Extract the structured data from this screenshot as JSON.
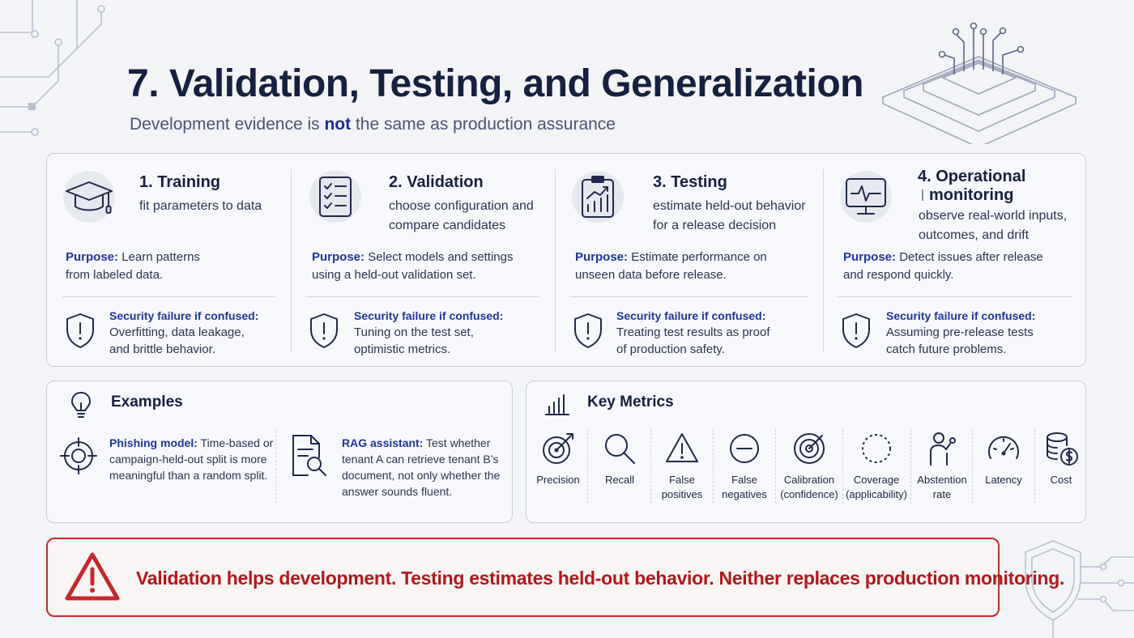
{
  "header": {
    "title": "7. Validation, Testing, and Generalization",
    "subtitle_before": "Development evidence is ",
    "subtitle_emphasis": "not",
    "subtitle_after": " the same as production assurance"
  },
  "stages": [
    {
      "title": "1. Training",
      "title_line2": "",
      "desc": [
        "fit parameters to data"
      ],
      "purpose_label": "Purpose:",
      "purpose": [
        "Learn patterns",
        "from labeled data."
      ],
      "failure_label": "Security failure if confused:",
      "failure": [
        "Overfitting, data leakage,",
        "and brittle behavior."
      ],
      "icon": "graduation-cap-icon"
    },
    {
      "title": "2. Validation",
      "title_line2": "",
      "desc": [
        "choose configuration and",
        "compare candidates"
      ],
      "purpose_label": "Purpose:",
      "purpose": [
        "Select models and settings",
        "using a held-out validation set."
      ],
      "failure_label": "Security failure if confused:",
      "failure": [
        "Tuning on the test set,",
        "optimistic metrics."
      ],
      "icon": "checklist-icon"
    },
    {
      "title": "3. Testing",
      "title_line2": "",
      "desc": [
        "estimate held-out behavior",
        "for a release decision"
      ],
      "purpose_label": "Purpose:",
      "purpose": [
        "Estimate performance on",
        "unseen data before release."
      ],
      "failure_label": "Security failure if confused:",
      "failure": [
        "Treating test results as proof",
        "of production safety."
      ],
      "icon": "clipboard-chart-icon"
    },
    {
      "title": "4. Operational",
      "title_line2": "monitoring",
      "desc": [
        "observe real-world inputs,",
        "outcomes, and drift"
      ],
      "purpose_label": "Purpose:",
      "purpose": [
        "Detect issues after release",
        "and respond quickly."
      ],
      "failure_label": "Security failure if confused:",
      "failure": [
        "Assuming pre-release tests",
        "catch future problems."
      ],
      "icon": "monitor-pulse-icon"
    }
  ],
  "examples": {
    "title": "Examples",
    "items": [
      {
        "label": "Phishing model:",
        "lines": [
          "Time-based or",
          "campaign-held-out split is more",
          "meaningful than a random split."
        ],
        "icon": "crosshair-icon"
      },
      {
        "label": "RAG assistant:",
        "lines": [
          "Test whether",
          "tenant A can retrieve tenant B’s",
          "document, not only whether the",
          "answer sounds fluent."
        ],
        "icon": "document-search-icon"
      }
    ]
  },
  "metrics": {
    "title": "Key Metrics",
    "items": [
      {
        "label": [
          "Precision"
        ],
        "icon": "target-arrow-icon"
      },
      {
        "label": [
          "Recall"
        ],
        "icon": "magnifier-icon"
      },
      {
        "label": [
          "False",
          "positives"
        ],
        "icon": "warning-triangle-icon"
      },
      {
        "label": [
          "False",
          "negatives"
        ],
        "icon": "minus-circle-icon"
      },
      {
        "label": [
          "Calibration",
          "(confidence)"
        ],
        "icon": "calibration-target-icon"
      },
      {
        "label": [
          "Coverage",
          "(applicability)"
        ],
        "icon": "dashed-circle-icon"
      },
      {
        "label": [
          "Abstention",
          "rate"
        ],
        "icon": "person-raise-hand-icon"
      },
      {
        "label": [
          "Latency"
        ],
        "icon": "speedometer-icon"
      },
      {
        "label": [
          "Cost"
        ],
        "icon": "coins-dollar-icon"
      }
    ]
  },
  "banner": {
    "text": "Validation helps development.  Testing estimates held-out behavior.  Neither replaces production monitoring.",
    "icon": "warning-icon"
  },
  "colors": {
    "accent": "#1f3699",
    "danger": "#c4292b",
    "ink": "#16203f",
    "background": "#f3f4f8"
  }
}
